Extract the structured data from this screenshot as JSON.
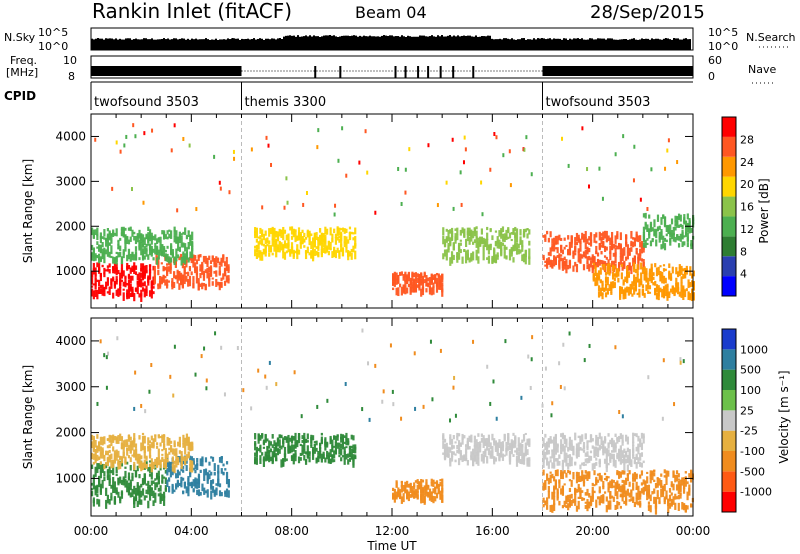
{
  "header": {
    "station": "Rankin Inlet (fitACF)",
    "beam": "Beam 04",
    "date": "28/Sep/2015"
  },
  "panels": {
    "nsky_label": "N.Sky",
    "nsky_ticks": [
      "10^5",
      "10^0"
    ],
    "nsearch_label": "N.Search",
    "nsearch_ticks": [
      "10^5",
      "10^0"
    ],
    "freq_label_1": "Freq.",
    "freq_label_2": "[MHz]",
    "freq_ticks": [
      "10",
      "8"
    ],
    "nave_label": "Nave",
    "nave_ticks": [
      "60",
      "0"
    ],
    "cpid_label": "CPID",
    "cpid_segments": [
      {
        "name": "twofsound 3503",
        "start": 0,
        "end": 6
      },
      {
        "name": "themis 3300",
        "start": 6,
        "end": 18
      },
      {
        "name": "twofsound 3503",
        "start": 18,
        "end": 24
      }
    ]
  },
  "colors": {
    "power": [
      "#0000ff",
      "#2a3fb0",
      "#2e7d32",
      "#4caf50",
      "#8bc34a",
      "#ffd600",
      "#ff9800",
      "#ff5722",
      "#ff0000"
    ],
    "velocity": [
      "#1a3ccc",
      "#2e7fa0",
      "#2f8a3a",
      "#6cc04a",
      "#c8c8c8",
      "#e6b040",
      "#f08c1e",
      "#ff5a14",
      "#ff0000"
    ]
  },
  "chart_data": [
    {
      "type": "heatmap",
      "quantity": "Power",
      "ylabel": "Slant Range [km]",
      "xlabel": "Time UT",
      "xlim": [
        0,
        24
      ],
      "ylim": [
        180,
        4500
      ],
      "xticks": [
        "00:00",
        "04:00",
        "08:00",
        "12:00",
        "16:00",
        "20:00",
        "00:00"
      ],
      "yticks": [
        "1000",
        "2000",
        "3000",
        "4000"
      ],
      "colorbar_label": "Power [dB]",
      "colorbar_ticks": [
        "4",
        "8",
        "12",
        "16",
        "20",
        "24",
        "28"
      ],
      "colorbar_range": [
        0,
        32
      ],
      "regions": [
        {
          "t0": 0.0,
          "t1": 2.5,
          "r0": 500,
          "r1": 1200,
          "value": 29
        },
        {
          "t0": 2.5,
          "t1": 5.5,
          "r0": 700,
          "r1": 1400,
          "value": 26
        },
        {
          "t0": 0.0,
          "t1": 4.0,
          "r0": 1300,
          "r1": 2000,
          "value": 13
        },
        {
          "t0": 6.5,
          "t1": 10.5,
          "r0": 1400,
          "r1": 2000,
          "value": 19
        },
        {
          "t0": 12.0,
          "t1": 14.0,
          "r0": 600,
          "r1": 1000,
          "value": 27
        },
        {
          "t0": 14.0,
          "t1": 17.5,
          "r0": 1300,
          "r1": 2000,
          "value": 15
        },
        {
          "t0": 18.0,
          "t1": 22.0,
          "r0": 1100,
          "r1": 1900,
          "value": 25
        },
        {
          "t0": 20.0,
          "t1": 24.0,
          "r0": 500,
          "r1": 1200,
          "value": 23
        },
        {
          "t0": 22.0,
          "t1": 24.0,
          "r0": 1600,
          "r1": 2300,
          "value": 11
        }
      ]
    },
    {
      "type": "heatmap",
      "quantity": "Velocity",
      "ylabel": "Slant Range [km]",
      "xlabel": "Time UT",
      "xlim": [
        0,
        24
      ],
      "ylim": [
        180,
        4500
      ],
      "xticks": [
        "00:00",
        "04:00",
        "08:00",
        "12:00",
        "16:00",
        "20:00",
        "00:00"
      ],
      "yticks": [
        "1000",
        "2000",
        "3000",
        "4000"
      ],
      "colorbar_label": "Velocity [m s⁻¹]",
      "colorbar_ticks": [
        "1000",
        "500",
        "100",
        "25",
        "-25",
        "-100",
        "-500",
        "-1000"
      ],
      "regions": [
        {
          "t0": 0.0,
          "t1": 3.0,
          "r0": 500,
          "r1": 1400,
          "value": 100
        },
        {
          "t0": 3.0,
          "t1": 5.5,
          "r0": 700,
          "r1": 1500,
          "value": 500
        },
        {
          "t0": 0.0,
          "t1": 4.0,
          "r0": 1300,
          "r1": 2000,
          "value": -100
        },
        {
          "t0": 6.5,
          "t1": 10.5,
          "r0": 1400,
          "r1": 2000,
          "value": 300
        },
        {
          "t0": 12.0,
          "t1": 14.0,
          "r0": 600,
          "r1": 1000,
          "value": -200
        },
        {
          "t0": 14.0,
          "t1": 17.5,
          "r0": 1400,
          "r1": 2000,
          "value": 0
        },
        {
          "t0": 18.0,
          "t1": 22.0,
          "r0": 1300,
          "r1": 2000,
          "value": 0
        },
        {
          "t0": 18.0,
          "t1": 24.0,
          "r0": 400,
          "r1": 1200,
          "value": -300
        }
      ]
    }
  ],
  "footer": {
    "xlabel": "Time UT"
  }
}
